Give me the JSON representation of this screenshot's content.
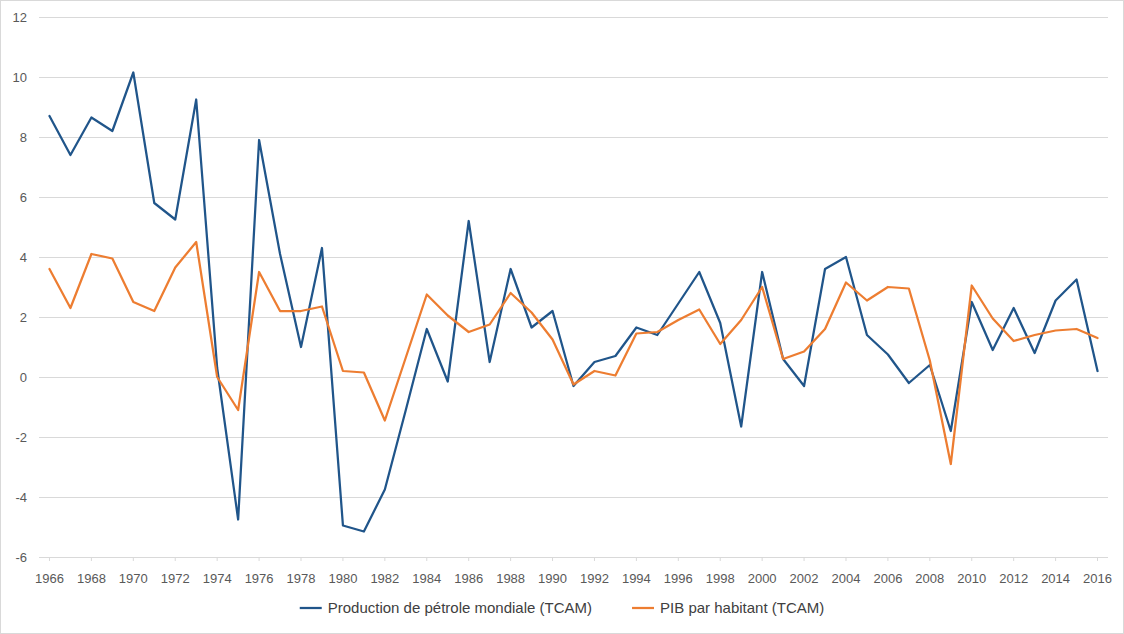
{
  "chart_data": {
    "type": "line",
    "x": [
      1966,
      1967,
      1968,
      1969,
      1970,
      1971,
      1972,
      1973,
      1974,
      1975,
      1976,
      1977,
      1978,
      1979,
      1980,
      1981,
      1982,
      1983,
      1984,
      1985,
      1986,
      1987,
      1988,
      1989,
      1990,
      1991,
      1992,
      1993,
      1994,
      1995,
      1996,
      1997,
      1998,
      1999,
      2000,
      2001,
      2002,
      2003,
      2004,
      2005,
      2006,
      2007,
      2008,
      2009,
      2010,
      2011,
      2012,
      2013,
      2014,
      2015,
      2016
    ],
    "xlim": [
      1965.5,
      2016.5
    ],
    "xticks": [
      1966,
      1968,
      1970,
      1972,
      1974,
      1976,
      1978,
      1980,
      1982,
      1984,
      1986,
      1988,
      1990,
      1992,
      1994,
      1996,
      1998,
      2000,
      2002,
      2004,
      2006,
      2008,
      2010,
      2012,
      2014,
      2016
    ],
    "ylim": [
      -6,
      12
    ],
    "yticks": [
      -6,
      -4,
      -2,
      0,
      2,
      4,
      6,
      8,
      10,
      12
    ],
    "grid": true,
    "legend": "bottom",
    "series": [
      {
        "name": "Production de pétrole mondiale (TCAM)",
        "color": "#20558a",
        "values": [
          8.7,
          7.4,
          8.65,
          8.2,
          10.15,
          5.8,
          5.25,
          9.25,
          0.3,
          -4.75,
          7.9,
          4.1,
          1.0,
          4.3,
          -4.95,
          -5.15,
          -3.75,
          -1.1,
          1.6,
          -0.15,
          5.2,
          0.5,
          3.6,
          1.65,
          2.2,
          -0.3,
          0.5,
          0.7,
          1.65,
          1.4,
          2.45,
          3.5,
          1.8,
          -1.65,
          3.5,
          0.6,
          -0.3,
          3.6,
          4.0,
          1.4,
          0.75,
          -0.2,
          0.4,
          -1.8,
          2.5,
          0.9,
          2.3,
          0.8,
          2.55,
          3.25,
          0.2
        ]
      },
      {
        "name": "PIB par habitant (TCAM)",
        "color": "#ed7d31",
        "values": [
          3.6,
          2.3,
          4.1,
          3.95,
          2.5,
          2.2,
          3.65,
          4.5,
          0.0,
          -1.1,
          3.5,
          2.2,
          2.2,
          2.35,
          0.2,
          0.15,
          -1.45,
          0.65,
          2.75,
          2.05,
          1.5,
          1.75,
          2.8,
          2.15,
          1.25,
          -0.25,
          0.2,
          0.05,
          1.45,
          1.5,
          1.9,
          2.25,
          1.1,
          1.9,
          3.0,
          0.6,
          0.85,
          1.6,
          3.15,
          2.55,
          3.0,
          2.95,
          0.55,
          -2.9,
          3.05,
          1.95,
          1.2,
          1.4,
          1.55,
          1.6,
          1.3
        ]
      }
    ]
  }
}
